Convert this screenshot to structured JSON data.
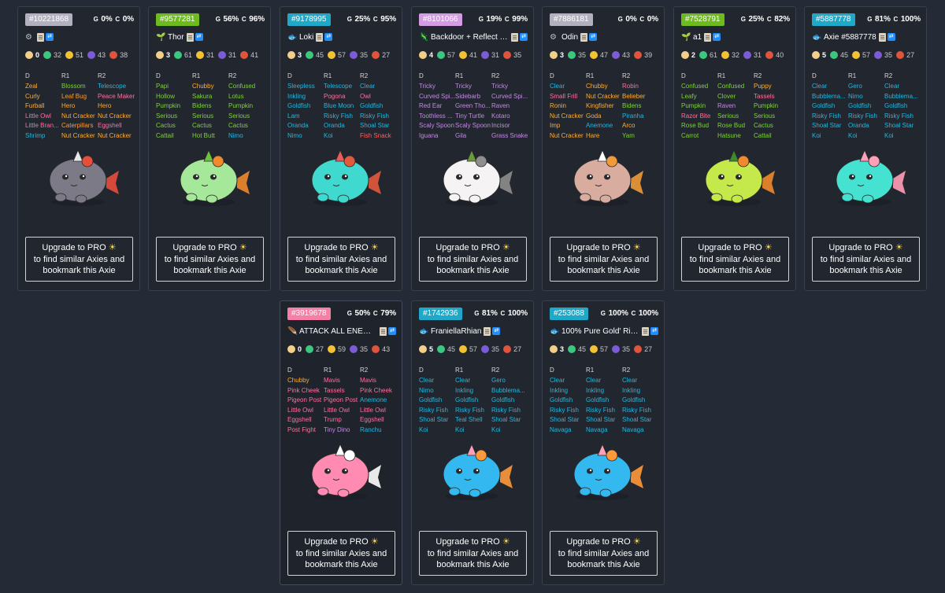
{
  "cards": [
    {
      "id": "#10221868",
      "idc": "#b3b1bf",
      "g": "0%",
      "c": "0%",
      "cls_icon": "⚙",
      "cls_color": "#b8c0cc",
      "name": "",
      "breed": "0",
      "stats": [
        "32",
        "51",
        "43",
        "38"
      ],
      "genes": [
        [
          "Zeal",
          "#ffad33",
          "Blossom",
          "#7ed23a",
          "Telescope",
          "#23b8e0"
        ],
        [
          "Curly",
          "#ffad33",
          "Leaf Bug",
          "#ff9a2e",
          "Peace Maker",
          "#ff6f9e"
        ],
        [
          "Furball",
          "#ffad33",
          "Hero",
          "#ffad33",
          "Hero",
          "#ffad33"
        ],
        [
          "Little Owl",
          "#ff6f9e",
          "Nut Cracker",
          "#ffad33",
          "Nut Cracker",
          "#ffad33"
        ],
        [
          "Little Bran...",
          "#ff6f9e",
          "Caterpillars",
          "#ff9a2e",
          "Eggshell",
          "#ff6f9e"
        ],
        [
          "Shrimp",
          "#23b8e0",
          "Nut Cracker",
          "#ffad33",
          "Nut Cracker",
          "#ffad33"
        ]
      ],
      "body": "#7b7a86",
      "acc": "#e84e3c",
      "horn": "#e8e8e8"
    },
    {
      "id": "#9577281",
      "idc": "#6dbb1f",
      "g": "56%",
      "c": "96%",
      "cls_icon": "🌱",
      "cls_color": "#6ec23c",
      "name": "Thor",
      "breed": "3",
      "stats": [
        "61",
        "31",
        "31",
        "41"
      ],
      "genes": [
        [
          "Papi",
          "#7ed23a",
          "Chubby",
          "#ffad33",
          "Confused",
          "#7ed23a"
        ],
        [
          "Hollow",
          "#7ed23a",
          "Sakura",
          "#7ed23a",
          "Lotus",
          "#7ed23a"
        ],
        [
          "Pumpkin",
          "#7ed23a",
          "Bidens",
          "#7ed23a",
          "Pumpkin",
          "#7ed23a"
        ],
        [
          "Serious",
          "#7ed23a",
          "Serious",
          "#7ed23a",
          "Serious",
          "#7ed23a"
        ],
        [
          "Cactus",
          "#7ed23a",
          "Cactus",
          "#7ed23a",
          "Cactus",
          "#7ed23a"
        ],
        [
          "Cattail",
          "#7ed23a",
          "Hot Butt",
          "#7ed23a",
          "Nimo",
          "#23b8e0"
        ]
      ],
      "body": "#a6e89a",
      "acc": "#f08a2c",
      "horn": "#6ec23c"
    },
    {
      "id": "#9178995",
      "idc": "#1fa9c9",
      "g": "25%",
      "c": "95%",
      "cls_icon": "🐟",
      "cls_color": "#23b8e0",
      "name": "Loki",
      "breed": "3",
      "stats": [
        "45",
        "57",
        "35",
        "27"
      ],
      "genes": [
        [
          "Sleepless",
          "#23b8e0",
          "Telescope",
          "#23b8e0",
          "Clear",
          "#23b8e0"
        ],
        [
          "Inkling",
          "#23b8e0",
          "Pogona",
          "#ff6f9e",
          "Owl",
          "#ff6f9e"
        ],
        [
          "Goldfish",
          "#23b8e0",
          "Blue Moon",
          "#23b8e0",
          "Goldfish",
          "#23b8e0"
        ],
        [
          "Lam",
          "#23b8e0",
          "Risky Fish",
          "#23b8e0",
          "Risky Fish",
          "#23b8e0"
        ],
        [
          "Oranda",
          "#23b8e0",
          "Oranda",
          "#23b8e0",
          "Shoal Star",
          "#23b8e0"
        ],
        [
          "Nimo",
          "#23b8e0",
          "Koi",
          "#23b8e0",
          "Fish Snack",
          "#ff5f5f"
        ]
      ],
      "body": "#3fd9d0",
      "acc": "#e25a3c",
      "horn": "#e85c5c"
    },
    {
      "id": "#8101066",
      "idc": "#d59be4",
      "g": "19%",
      "c": "99%",
      "cls_icon": "🦎",
      "cls_color": "#c18be0",
      "name": "Backdoor + Reflect + H...",
      "breed": "4",
      "stats": [
        "57",
        "41",
        "31",
        "35"
      ],
      "genes": [
        [
          "Tricky",
          "#c18be0",
          "Tricky",
          "#c18be0",
          "Tricky",
          "#c18be0"
        ],
        [
          "Curved Spi...",
          "#c18be0",
          "Sidebarb",
          "#c18be0",
          "Curved Spi...",
          "#c18be0"
        ],
        [
          "Red Ear",
          "#c18be0",
          "Green Tho...",
          "#c18be0",
          "Raven",
          "#c18be0"
        ],
        [
          "Toothless ...",
          "#c18be0",
          "Tiny Turtle",
          "#c18be0",
          "Kotaro",
          "#c18be0"
        ],
        [
          "Scaly Spoon",
          "#c18be0",
          "Scaly Spoon",
          "#c18be0",
          "Incisor",
          "#c18be0"
        ],
        [
          "Iguana",
          "#c18be0",
          "Gila",
          "#c18be0",
          "Grass Snake",
          "#c18be0"
        ]
      ],
      "body": "#f5f3f3",
      "acc": "#8e8e8e",
      "horn": "#6a9a3a"
    },
    {
      "id": "#7886181",
      "idc": "#b3b1bf",
      "g": "0%",
      "c": "0%",
      "cls_icon": "⚙",
      "cls_color": "#b8c0cc",
      "name": "Odin",
      "breed": "3",
      "stats": [
        "35",
        "47",
        "43",
        "39"
      ],
      "genes": [
        [
          "Clear",
          "#23b8e0",
          "Chubby",
          "#ffad33",
          "Robin",
          "#ff6f9e"
        ],
        [
          "Small Frill",
          "#ff6f9e",
          "Nut Cracker",
          "#ffad33",
          "Belieber",
          "#ffad33"
        ],
        [
          "Ronin",
          "#ffad33",
          "Kingfisher",
          "#ffad33",
          "Bidens",
          "#7ed23a"
        ],
        [
          "Nut Cracker",
          "#ffad33",
          "Goda",
          "#ffad33",
          "Piranha",
          "#23b8e0"
        ],
        [
          "Imp",
          "#ffad33",
          "Anemone",
          "#23b8e0",
          "Arco",
          "#ffad33"
        ],
        [
          "Nut Cracker",
          "#ffad33",
          "Hare",
          "#ffad33",
          "Yam",
          "#7ed23a"
        ]
      ],
      "body": "#d9aca0",
      "acc": "#f09a3a",
      "horn": "#ffffff"
    },
    {
      "id": "#7528791",
      "idc": "#6dbb1f",
      "g": "25%",
      "c": "82%",
      "cls_icon": "🌱",
      "cls_color": "#6ec23c",
      "name": "a1",
      "breed": "2",
      "stats": [
        "61",
        "32",
        "31",
        "40"
      ],
      "genes": [
        [
          "Confused",
          "#7ed23a",
          "Confused",
          "#7ed23a",
          "Puppy",
          "#ffad33"
        ],
        [
          "Leafy",
          "#7ed23a",
          "Clover",
          "#7ed23a",
          "Tassels",
          "#ff6f9e"
        ],
        [
          "Pumpkin",
          "#7ed23a",
          "Raven",
          "#c18be0",
          "Pumpkin",
          "#7ed23a"
        ],
        [
          "Razor Bite",
          "#ff6f9e",
          "Serious",
          "#7ed23a",
          "Serious",
          "#7ed23a"
        ],
        [
          "Rose Bud",
          "#7ed23a",
          "Rose Bud",
          "#7ed23a",
          "Cactus",
          "#7ed23a"
        ],
        [
          "Carrot",
          "#7ed23a",
          "Hatsune",
          "#7ed23a",
          "Cattail",
          "#7ed23a"
        ]
      ],
      "body": "#c5e94a",
      "acc": "#f08a2c",
      "horn": "#3f8a2c"
    },
    {
      "id": "#5887778",
      "idc": "#1fa9c9",
      "g": "81%",
      "c": "100%",
      "cls_icon": "🐟",
      "cls_color": "#23b8e0",
      "name": "Axie #5887778",
      "breed": "5",
      "stats": [
        "45",
        "57",
        "35",
        "27"
      ],
      "genes": [
        [
          "Clear",
          "#23b8e0",
          "Gero",
          "#23b8e0",
          "Clear",
          "#23b8e0"
        ],
        [
          "Bubblema...",
          "#23b8e0",
          "Nimo",
          "#23b8e0",
          "Bubblema...",
          "#23b8e0"
        ],
        [
          "Goldfish",
          "#23b8e0",
          "Goldfish",
          "#23b8e0",
          "Goldfish",
          "#23b8e0"
        ],
        [
          "Risky Fish",
          "#23b8e0",
          "Risky Fish",
          "#23b8e0",
          "Risky Fish",
          "#23b8e0"
        ],
        [
          "Shoal Star",
          "#23b8e0",
          "Oranda",
          "#23b8e0",
          "Shoal Star",
          "#23b8e0"
        ],
        [
          "Koi",
          "#23b8e0",
          "Koi",
          "#23b8e0",
          "Koi",
          "#23b8e0"
        ]
      ],
      "body": "#45e2d2",
      "acc": "#ff9fb8",
      "horn": "#ff9fb8"
    },
    {
      "id": "#3919678",
      "idc": "#f57fa6",
      "g": "50%",
      "c": "79%",
      "cls_icon": "🪶",
      "cls_color": "#ff6f9e",
      "name": "ATTACK ALL ENEMIES...",
      "breed": "0",
      "stats": [
        "27",
        "59",
        "35",
        "43"
      ],
      "genes": [
        [
          "Chubby",
          "#ffad33",
          "Mavis",
          "#ff6f9e",
          "Mavis",
          "#ff6f9e"
        ],
        [
          "Pink Cheek",
          "#ff6f9e",
          "Tassels",
          "#ff6f9e",
          "Pink Cheek",
          "#ff6f9e"
        ],
        [
          "Pigeon Post",
          "#ff6f9e",
          "Pigeon Post",
          "#ff6f9e",
          "Anemone",
          "#23b8e0"
        ],
        [
          "Little Owl",
          "#ff6f9e",
          "Little Owl",
          "#ff6f9e",
          "Little Owl",
          "#ff6f9e"
        ],
        [
          "Eggshell",
          "#ff6f9e",
          "Trump",
          "#ff6f9e",
          "Eggshell",
          "#ff6f9e"
        ],
        [
          "Post Fight",
          "#ff6f9e",
          "Tiny Dino",
          "#c18be0",
          "Ranchu",
          "#23b8e0"
        ]
      ],
      "body": "#ff8ab2",
      "acc": "#ffffff",
      "horn": "#ffffff"
    },
    {
      "id": "#1742936",
      "idc": "#1fa9c9",
      "g": "81%",
      "c": "100%",
      "cls_icon": "🐟",
      "cls_color": "#23b8e0",
      "name": "FraniellaRhian",
      "breed": "5",
      "stats": [
        "45",
        "57",
        "35",
        "27"
      ],
      "genes": [
        [
          "Clear",
          "#23b8e0",
          "Clear",
          "#23b8e0",
          "Gero",
          "#23b8e0"
        ],
        [
          "Nimo",
          "#23b8e0",
          "Inkling",
          "#23b8e0",
          "Bubblema...",
          "#23b8e0"
        ],
        [
          "Goldfish",
          "#23b8e0",
          "Goldfish",
          "#23b8e0",
          "Goldfish",
          "#23b8e0"
        ],
        [
          "Risky Fish",
          "#23b8e0",
          "Risky Fish",
          "#23b8e0",
          "Risky Fish",
          "#23b8e0"
        ],
        [
          "Shoal Star",
          "#23b8e0",
          "Teal Shell",
          "#23b8e0",
          "Shoal Star",
          "#23b8e0"
        ],
        [
          "Koi",
          "#23b8e0",
          "Koi",
          "#23b8e0",
          "Koi",
          "#23b8e0"
        ]
      ],
      "body": "#33b8f0",
      "acc": "#ff9a3a",
      "horn": "#ff9fb8"
    },
    {
      "id": "#253088",
      "idc": "#1fa9c9",
      "g": "100%",
      "c": "100%",
      "cls_icon": "🐟",
      "cls_color": "#23b8e0",
      "name": "100% Pure Gold' Risky...",
      "breed": "3",
      "stats": [
        "45",
        "57",
        "35",
        "27"
      ],
      "genes": [
        [
          "Clear",
          "#23b8e0",
          "Clear",
          "#23b8e0",
          "Clear",
          "#23b8e0"
        ],
        [
          "Inkling",
          "#23b8e0",
          "Inkling",
          "#23b8e0",
          "Inkling",
          "#23b8e0"
        ],
        [
          "Goldfish",
          "#23b8e0",
          "Goldfish",
          "#23b8e0",
          "Goldfish",
          "#23b8e0"
        ],
        [
          "Risky Fish",
          "#23b8e0",
          "Risky Fish",
          "#23b8e0",
          "Risky Fish",
          "#23b8e0"
        ],
        [
          "Shoal Star",
          "#23b8e0",
          "Shoal Star",
          "#23b8e0",
          "Shoal Star",
          "#23b8e0"
        ],
        [
          "Navaga",
          "#23b8e0",
          "Navaga",
          "#23b8e0",
          "Navaga",
          "#23b8e0"
        ]
      ],
      "body": "#33b8f0",
      "acc": "#ff9a3a",
      "horn": "#ff9fb8"
    }
  ],
  "labels": {
    "purity_g": "G",
    "purity_c": "C",
    "col_d": "D",
    "col_r1": "R1",
    "col_r2": "R2",
    "upgrade_l1": "Upgrade to PRO",
    "upgrade_l2": "to find similar Axies and",
    "upgrade_l3": "bookmark this Axie",
    "sun": "☀"
  },
  "colors": {
    "bg": "#252a37",
    "card": "#22262f",
    "health": "#3cc77f",
    "speed": "#f2c233",
    "skill": "#7b5cd6",
    "morale": "#e0533c",
    "breed": "#f3d08a"
  }
}
